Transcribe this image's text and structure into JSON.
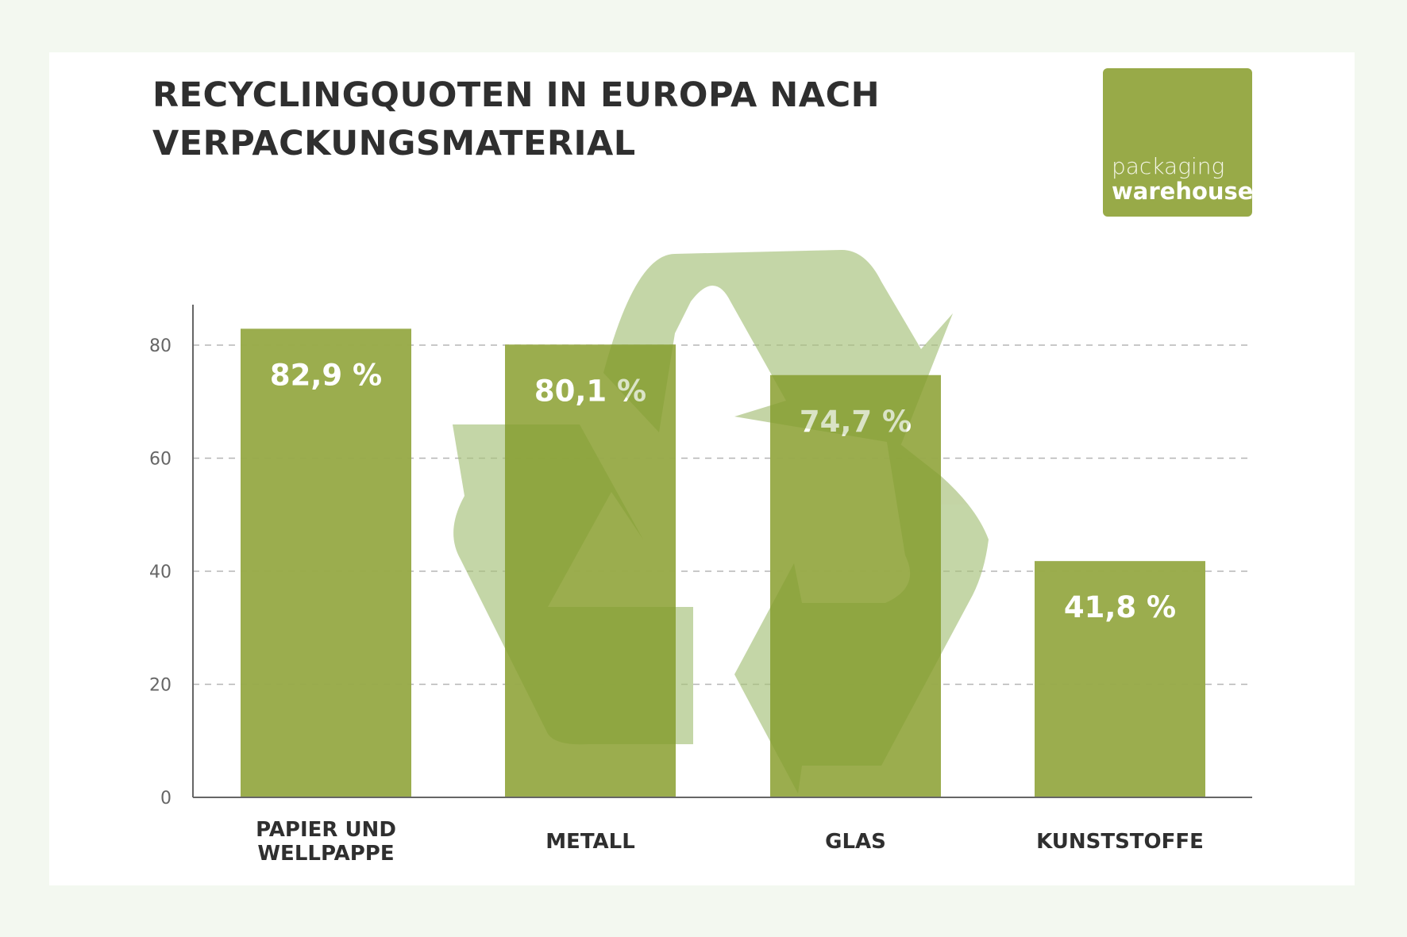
{
  "title_lines": [
    "RECYCLINGQUOTEN IN EUROPA NACH",
    "VERPACKUNGSMATERIAL"
  ],
  "logo": {
    "line1": "packaging",
    "line2": "warehouse"
  },
  "colors": {
    "bar": "#98aa48",
    "background": "#f3f8f0",
    "watermark": "#c9dcb0"
  },
  "background_icon": "recycle-icon",
  "chart_data": {
    "type": "bar",
    "title": "RECYCLINGQUOTEN IN EUROPA NACH VERPACKUNGSMATERIAL",
    "categories": [
      [
        "PAPIER UND",
        "WELLPAPPE"
      ],
      [
        "METALL"
      ],
      [
        "GLAS"
      ],
      [
        "KUNSTSTOFFE"
      ]
    ],
    "values": [
      82.9,
      80.1,
      74.7,
      41.8
    ],
    "data_labels": [
      "82,9 %",
      "80,1 %",
      "74,7 %",
      "41,8 %"
    ],
    "yticks": [
      "0",
      "20",
      "40",
      "60",
      "80"
    ],
    "ylim": [
      0,
      87
    ],
    "grid": true,
    "xlabel": "",
    "ylabel": ""
  }
}
